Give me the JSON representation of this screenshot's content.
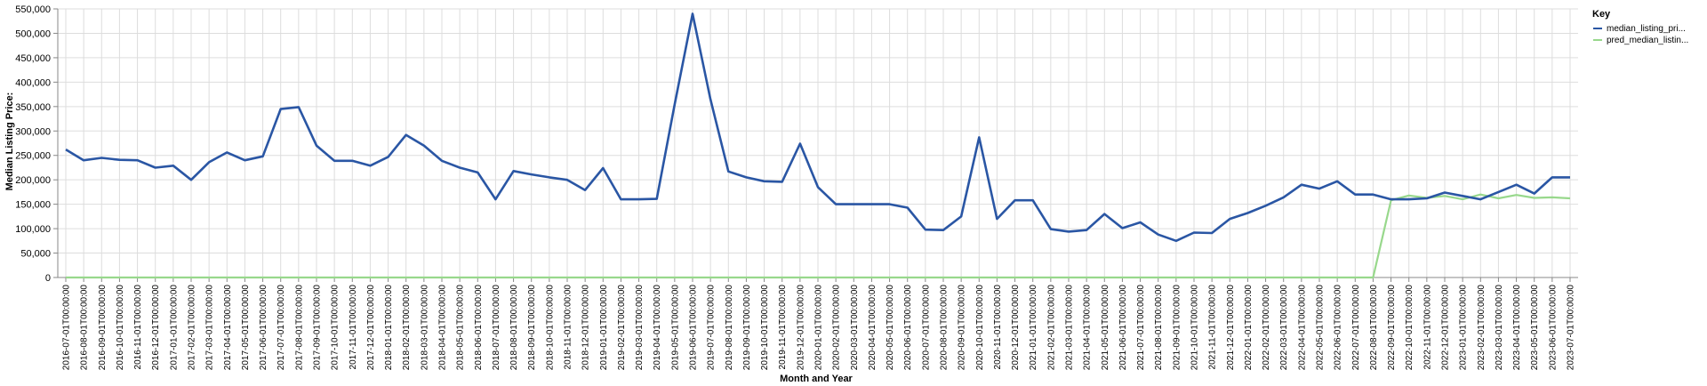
{
  "chart_data": {
    "type": "line",
    "xlabel": "Month and Year",
    "ylabel": "Median Listing Price:",
    "ylim": [
      0,
      550000
    ],
    "yticks": [
      "0",
      "50,000",
      "100,000",
      "150,000",
      "200,000",
      "250,000",
      "300,000",
      "350,000",
      "400,000",
      "450,000",
      "500,000",
      "550,000"
    ],
    "grid": true,
    "legend": {
      "title": "Key",
      "position": "top-right"
    },
    "colors": {
      "median_listing_price": "#2a56a4",
      "pred_median_listing_price": "#98d88c"
    },
    "x": [
      "2016-07-01T00:00:00",
      "2016-08-01T00:00:00",
      "2016-09-01T00:00:00",
      "2016-10-01T00:00:00",
      "2016-11-01T00:00:00",
      "2016-12-01T00:00:00",
      "2017-01-01T00:00:00",
      "2017-02-01T00:00:00",
      "2017-03-01T00:00:00",
      "2017-04-01T00:00:00",
      "2017-05-01T00:00:00",
      "2017-06-01T00:00:00",
      "2017-07-01T00:00:00",
      "2017-08-01T00:00:00",
      "2017-09-01T00:00:00",
      "2017-10-01T00:00:00",
      "2017-11-01T00:00:00",
      "2017-12-01T00:00:00",
      "2018-01-01T00:00:00",
      "2018-02-01T00:00:00",
      "2018-03-01T00:00:00",
      "2018-04-01T00:00:00",
      "2018-05-01T00:00:00",
      "2018-06-01T00:00:00",
      "2018-07-01T00:00:00",
      "2018-08-01T00:00:00",
      "2018-09-01T00:00:00",
      "2018-10-01T00:00:00",
      "2018-11-01T00:00:00",
      "2018-12-01T00:00:00",
      "2019-01-01T00:00:00",
      "2019-02-01T00:00:00",
      "2019-03-01T00:00:00",
      "2019-04-01T00:00:00",
      "2019-05-01T00:00:00",
      "2019-06-01T00:00:00",
      "2019-07-01T00:00:00",
      "2019-08-01T00:00:00",
      "2019-09-01T00:00:00",
      "2019-10-01T00:00:00",
      "2019-11-01T00:00:00",
      "2019-12-01T00:00:00",
      "2020-01-01T00:00:00",
      "2020-02-01T00:00:00",
      "2020-03-01T00:00:00",
      "2020-04-01T00:00:00",
      "2020-05-01T00:00:00",
      "2020-06-01T00:00:00",
      "2020-07-01T00:00:00",
      "2020-08-01T00:00:00",
      "2020-09-01T00:00:00",
      "2020-10-01T00:00:00",
      "2020-11-01T00:00:00",
      "2020-12-01T00:00:00",
      "2021-01-01T00:00:00",
      "2021-02-01T00:00:00",
      "2021-03-01T00:00:00",
      "2021-04-01T00:00:00",
      "2021-05-01T00:00:00",
      "2021-06-01T00:00:00",
      "2021-07-01T00:00:00",
      "2021-08-01T00:00:00",
      "2021-09-01T00:00:00",
      "2021-10-01T00:00:00",
      "2021-11-01T00:00:00",
      "2021-12-01T00:00:00",
      "2022-01-01T00:00:00",
      "2022-02-01T00:00:00",
      "2022-03-01T00:00:00",
      "2022-04-01T00:00:00",
      "2022-05-01T00:00:00",
      "2022-06-01T00:00:00",
      "2022-07-01T00:00:00",
      "2022-08-01T00:00:00",
      "2022-09-01T00:00:00",
      "2022-10-01T00:00:00",
      "2022-11-01T00:00:00",
      "2022-12-01T00:00:00",
      "2023-01-01T00:00:00",
      "2023-02-01T00:00:00",
      "2023-03-01T00:00:00",
      "2023-04-01T00:00:00",
      "2023-05-01T00:00:00",
      "2023-06-01T00:00:00",
      "2023-07-01T00:00:00"
    ],
    "series": [
      {
        "name": "median_listing_pri...",
        "values": [
          262000,
          240000,
          245000,
          241000,
          240000,
          225000,
          229000,
          200000,
          236000,
          256000,
          240000,
          248000,
          345000,
          349000,
          270000,
          239000,
          239000,
          229000,
          247000,
          292000,
          270000,
          239000,
          225000,
          215000,
          160000,
          218000,
          211000,
          205000,
          200000,
          179000,
          224000,
          160000,
          160000,
          161000,
          355000,
          540000,
          365000,
          217000,
          205000,
          197000,
          196000,
          274000,
          185000,
          150000,
          150000,
          150000,
          150000,
          143000,
          98000,
          97000,
          125000,
          287000,
          120000,
          158000,
          158000,
          99000,
          94000,
          97000,
          130000,
          101000,
          113000,
          88000,
          75000,
          92000,
          91000,
          120000,
          132000,
          147000,
          164000,
          190000,
          182000,
          197000,
          170000,
          170000,
          160000,
          160000,
          162000,
          174000,
          167000,
          160000,
          175000,
          190000,
          172000,
          205000,
          205000
        ]
      },
      {
        "name": "pred_median_listin...",
        "values": [
          0,
          0,
          0,
          0,
          0,
          0,
          0,
          0,
          0,
          0,
          0,
          0,
          0,
          0,
          0,
          0,
          0,
          0,
          0,
          0,
          0,
          0,
          0,
          0,
          0,
          0,
          0,
          0,
          0,
          0,
          0,
          0,
          0,
          0,
          0,
          0,
          0,
          0,
          0,
          0,
          0,
          0,
          0,
          0,
          0,
          0,
          0,
          0,
          0,
          0,
          0,
          0,
          0,
          0,
          0,
          0,
          0,
          0,
          0,
          0,
          0,
          0,
          0,
          0,
          0,
          0,
          0,
          0,
          0,
          0,
          0,
          0,
          0,
          0,
          158000,
          168000,
          163000,
          167000,
          160000,
          170000,
          162000,
          169000,
          163000,
          164000,
          162000
        ]
      }
    ]
  }
}
